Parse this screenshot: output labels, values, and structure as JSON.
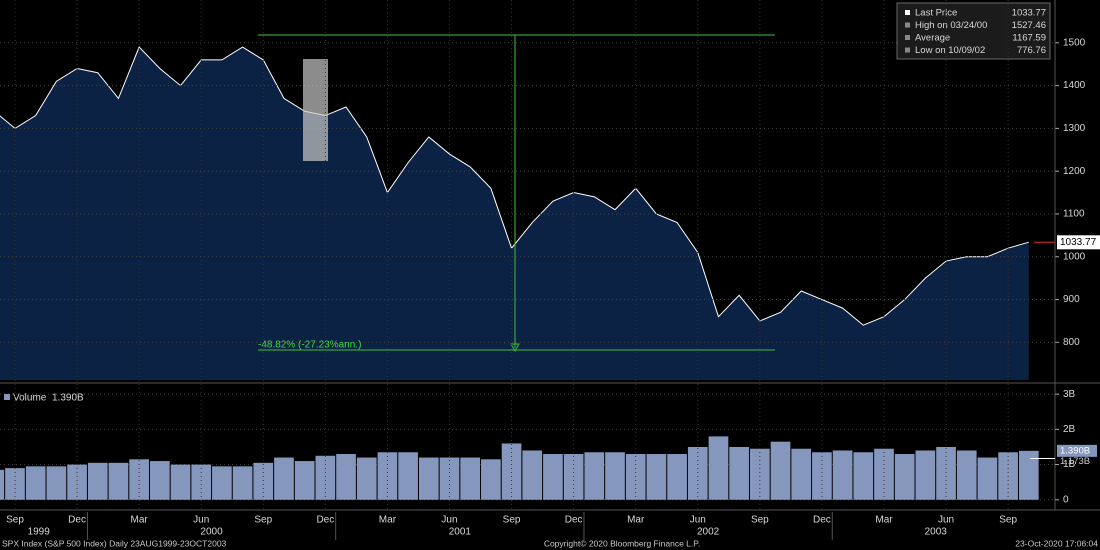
{
  "chart_data": [
    {
      "type": "area",
      "x": [
        "1999-08",
        "1999-09",
        "1999-10",
        "1999-11",
        "1999-12",
        "2000-01",
        "2000-02",
        "2000-03",
        "2000-04",
        "2000-05",
        "2000-06",
        "2000-07",
        "2000-08",
        "2000-09",
        "2000-10",
        "2000-11",
        "2000-12",
        "2001-01",
        "2001-02",
        "2001-03",
        "2001-04",
        "2001-05",
        "2001-06",
        "2001-07",
        "2001-08",
        "2001-09",
        "2001-10",
        "2001-11",
        "2001-12",
        "2002-01",
        "2002-02",
        "2002-03",
        "2002-04",
        "2002-05",
        "2002-06",
        "2002-07",
        "2002-08",
        "2002-09",
        "2002-10",
        "2002-11",
        "2002-12",
        "2003-01",
        "2003-02",
        "2003-03",
        "2003-04",
        "2003-05",
        "2003-06",
        "2003-07",
        "2003-08",
        "2003-09",
        "2003-10"
      ],
      "series": [
        {
          "name": "Last Price",
          "color": "#ffffff",
          "values": [
            1340,
            1300,
            1330,
            1410,
            1440,
            1430,
            1370,
            1490,
            1440,
            1400,
            1460,
            1460,
            1490,
            1460,
            1370,
            1340,
            1330,
            1350,
            1280,
            1150,
            1220,
            1280,
            1240,
            1210,
            1160,
            1020,
            1080,
            1130,
            1150,
            1140,
            1110,
            1160,
            1100,
            1080,
            1010,
            860,
            910,
            850,
            870,
            920,
            900,
            880,
            840,
            860,
            900,
            950,
            990,
            1000,
            1000,
            1020,
            1034
          ]
        }
      ],
      "ylim": [
        712,
        1600
      ],
      "yticks": [
        800,
        900,
        1000,
        1100,
        1200,
        1300,
        1400,
        1500
      ],
      "grid": true,
      "legend": [
        {
          "label": "Last Price",
          "value": 1033.77
        },
        {
          "label": "High on 03/24/00",
          "value": 1527.46
        },
        {
          "label": "Average",
          "value": 1167.59
        },
        {
          "label": "Low on 10/09/02",
          "value": 776.76
        }
      ],
      "annotations": [
        "-48.82% (-27.23%ann.)"
      ]
    },
    {
      "type": "bar",
      "series": [
        {
          "name": "Volume",
          "color": "#8597bd",
          "values": [
            0.85,
            0.9,
            0.95,
            0.95,
            1.0,
            1.05,
            1.05,
            1.15,
            1.1,
            1.0,
            1.0,
            0.95,
            0.95,
            1.05,
            1.2,
            1.1,
            1.25,
            1.3,
            1.2,
            1.35,
            1.35,
            1.2,
            1.2,
            1.2,
            1.15,
            1.6,
            1.4,
            1.3,
            1.3,
            1.35,
            1.35,
            1.3,
            1.3,
            1.3,
            1.5,
            1.8,
            1.5,
            1.45,
            1.65,
            1.45,
            1.35,
            1.4,
            1.35,
            1.45,
            1.3,
            1.4,
            1.5,
            1.4,
            1.2,
            1.35,
            1.39
          ]
        }
      ],
      "last": {
        "value": 1.39,
        "label": "1.390B"
      },
      "average": {
        "value": 1.173,
        "label": "1.173B"
      },
      "ylim": [
        -0.29,
        3.26
      ],
      "yticks": [
        {
          "value": 3,
          "label": "3B"
        },
        {
          "value": 2,
          "label": "2B"
        },
        {
          "value": 1,
          "label": "1B"
        },
        0
      ],
      "xticks": [
        {
          "value": "1999-09",
          "label": "Sep"
        },
        {
          "value": "1999-12",
          "label": "Dec"
        },
        {
          "value": "2000-03",
          "label": "Mar"
        },
        {
          "value": "2000-06",
          "label": "Jun"
        },
        {
          "value": "2000-09",
          "label": "Sep"
        },
        {
          "value": "2000-12",
          "label": "Dec"
        },
        {
          "value": "2001-03",
          "label": "Mar"
        },
        {
          "value": "2001-06",
          "label": "Jun"
        },
        {
          "value": "2001-09",
          "label": "Sep"
        },
        {
          "value": "2001-12",
          "label": "Dec"
        },
        {
          "value": "2002-03",
          "label": "Mar"
        },
        {
          "value": "2002-06",
          "label": "Jun"
        },
        {
          "value": "2002-09",
          "label": "Sep"
        },
        {
          "value": "2002-12",
          "label": "Dec"
        },
        {
          "value": "2003-03",
          "label": "Mar"
        },
        {
          "value": "2003-06",
          "label": "Jun"
        },
        {
          "value": "2003-09",
          "label": "Sep"
        }
      ],
      "years": [
        "1999",
        "2000",
        "2001",
        "2002",
        "2003"
      ]
    }
  ],
  "footer": {
    "left": "SPX Index (S&P 500 Index)  Daily 23AUG1999-23OCT2003",
    "center": "Copyright© 2020 Bloomberg Finance L.P.",
    "right": "23-Oct-2020 17:06:04"
  }
}
